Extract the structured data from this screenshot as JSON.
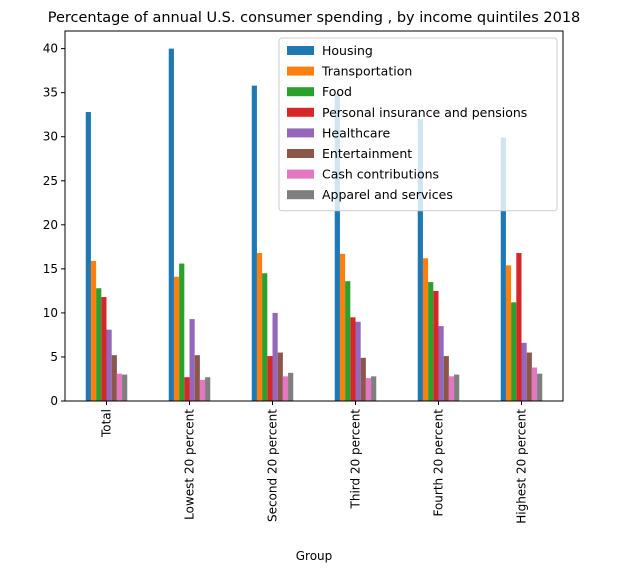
{
  "chart_data": {
    "type": "bar",
    "title": "Percentage of annual U.S. consumer spending , by income quintiles 2018",
    "xlabel": "Group",
    "ylabel": "",
    "ylim": [
      0,
      42
    ],
    "yticks": [
      0,
      5,
      10,
      15,
      20,
      25,
      30,
      35,
      40
    ],
    "categories": [
      "Total",
      "Lowest 20 percent",
      "Second 20 percent",
      "Third 20 percent",
      "Fourth 20 percent",
      "Highest 20 percent"
    ],
    "legend_position": "top-right",
    "grid": false,
    "series": [
      {
        "name": "Housing",
        "color": "#1f77b4",
        "values": [
          32.8,
          40.0,
          35.8,
          34.9,
          32.0,
          29.9
        ]
      },
      {
        "name": "Transportation",
        "color": "#ff7f0e",
        "values": [
          15.9,
          14.1,
          16.8,
          16.7,
          16.2,
          15.4
        ]
      },
      {
        "name": "Food",
        "color": "#2ca02c",
        "values": [
          12.8,
          15.6,
          14.5,
          13.6,
          13.5,
          11.2
        ]
      },
      {
        "name": "Personal insurance and pensions",
        "color": "#d62728",
        "values": [
          11.8,
          2.7,
          5.1,
          9.5,
          12.5,
          16.8
        ]
      },
      {
        "name": "Healthcare",
        "color": "#9467bd",
        "values": [
          8.1,
          9.3,
          10.0,
          9.0,
          8.5,
          6.6
        ]
      },
      {
        "name": "Entertainment",
        "color": "#8c564b",
        "values": [
          5.2,
          5.2,
          5.5,
          4.9,
          5.1,
          5.5
        ]
      },
      {
        "name": "Cash contributions",
        "color": "#e377c2",
        "values": [
          3.1,
          2.4,
          2.8,
          2.6,
          2.8,
          3.8
        ]
      },
      {
        "name": "Apparel and services",
        "color": "#7f7f7f",
        "values": [
          3.0,
          2.7,
          3.2,
          2.8,
          3.0,
          3.1
        ]
      }
    ]
  }
}
